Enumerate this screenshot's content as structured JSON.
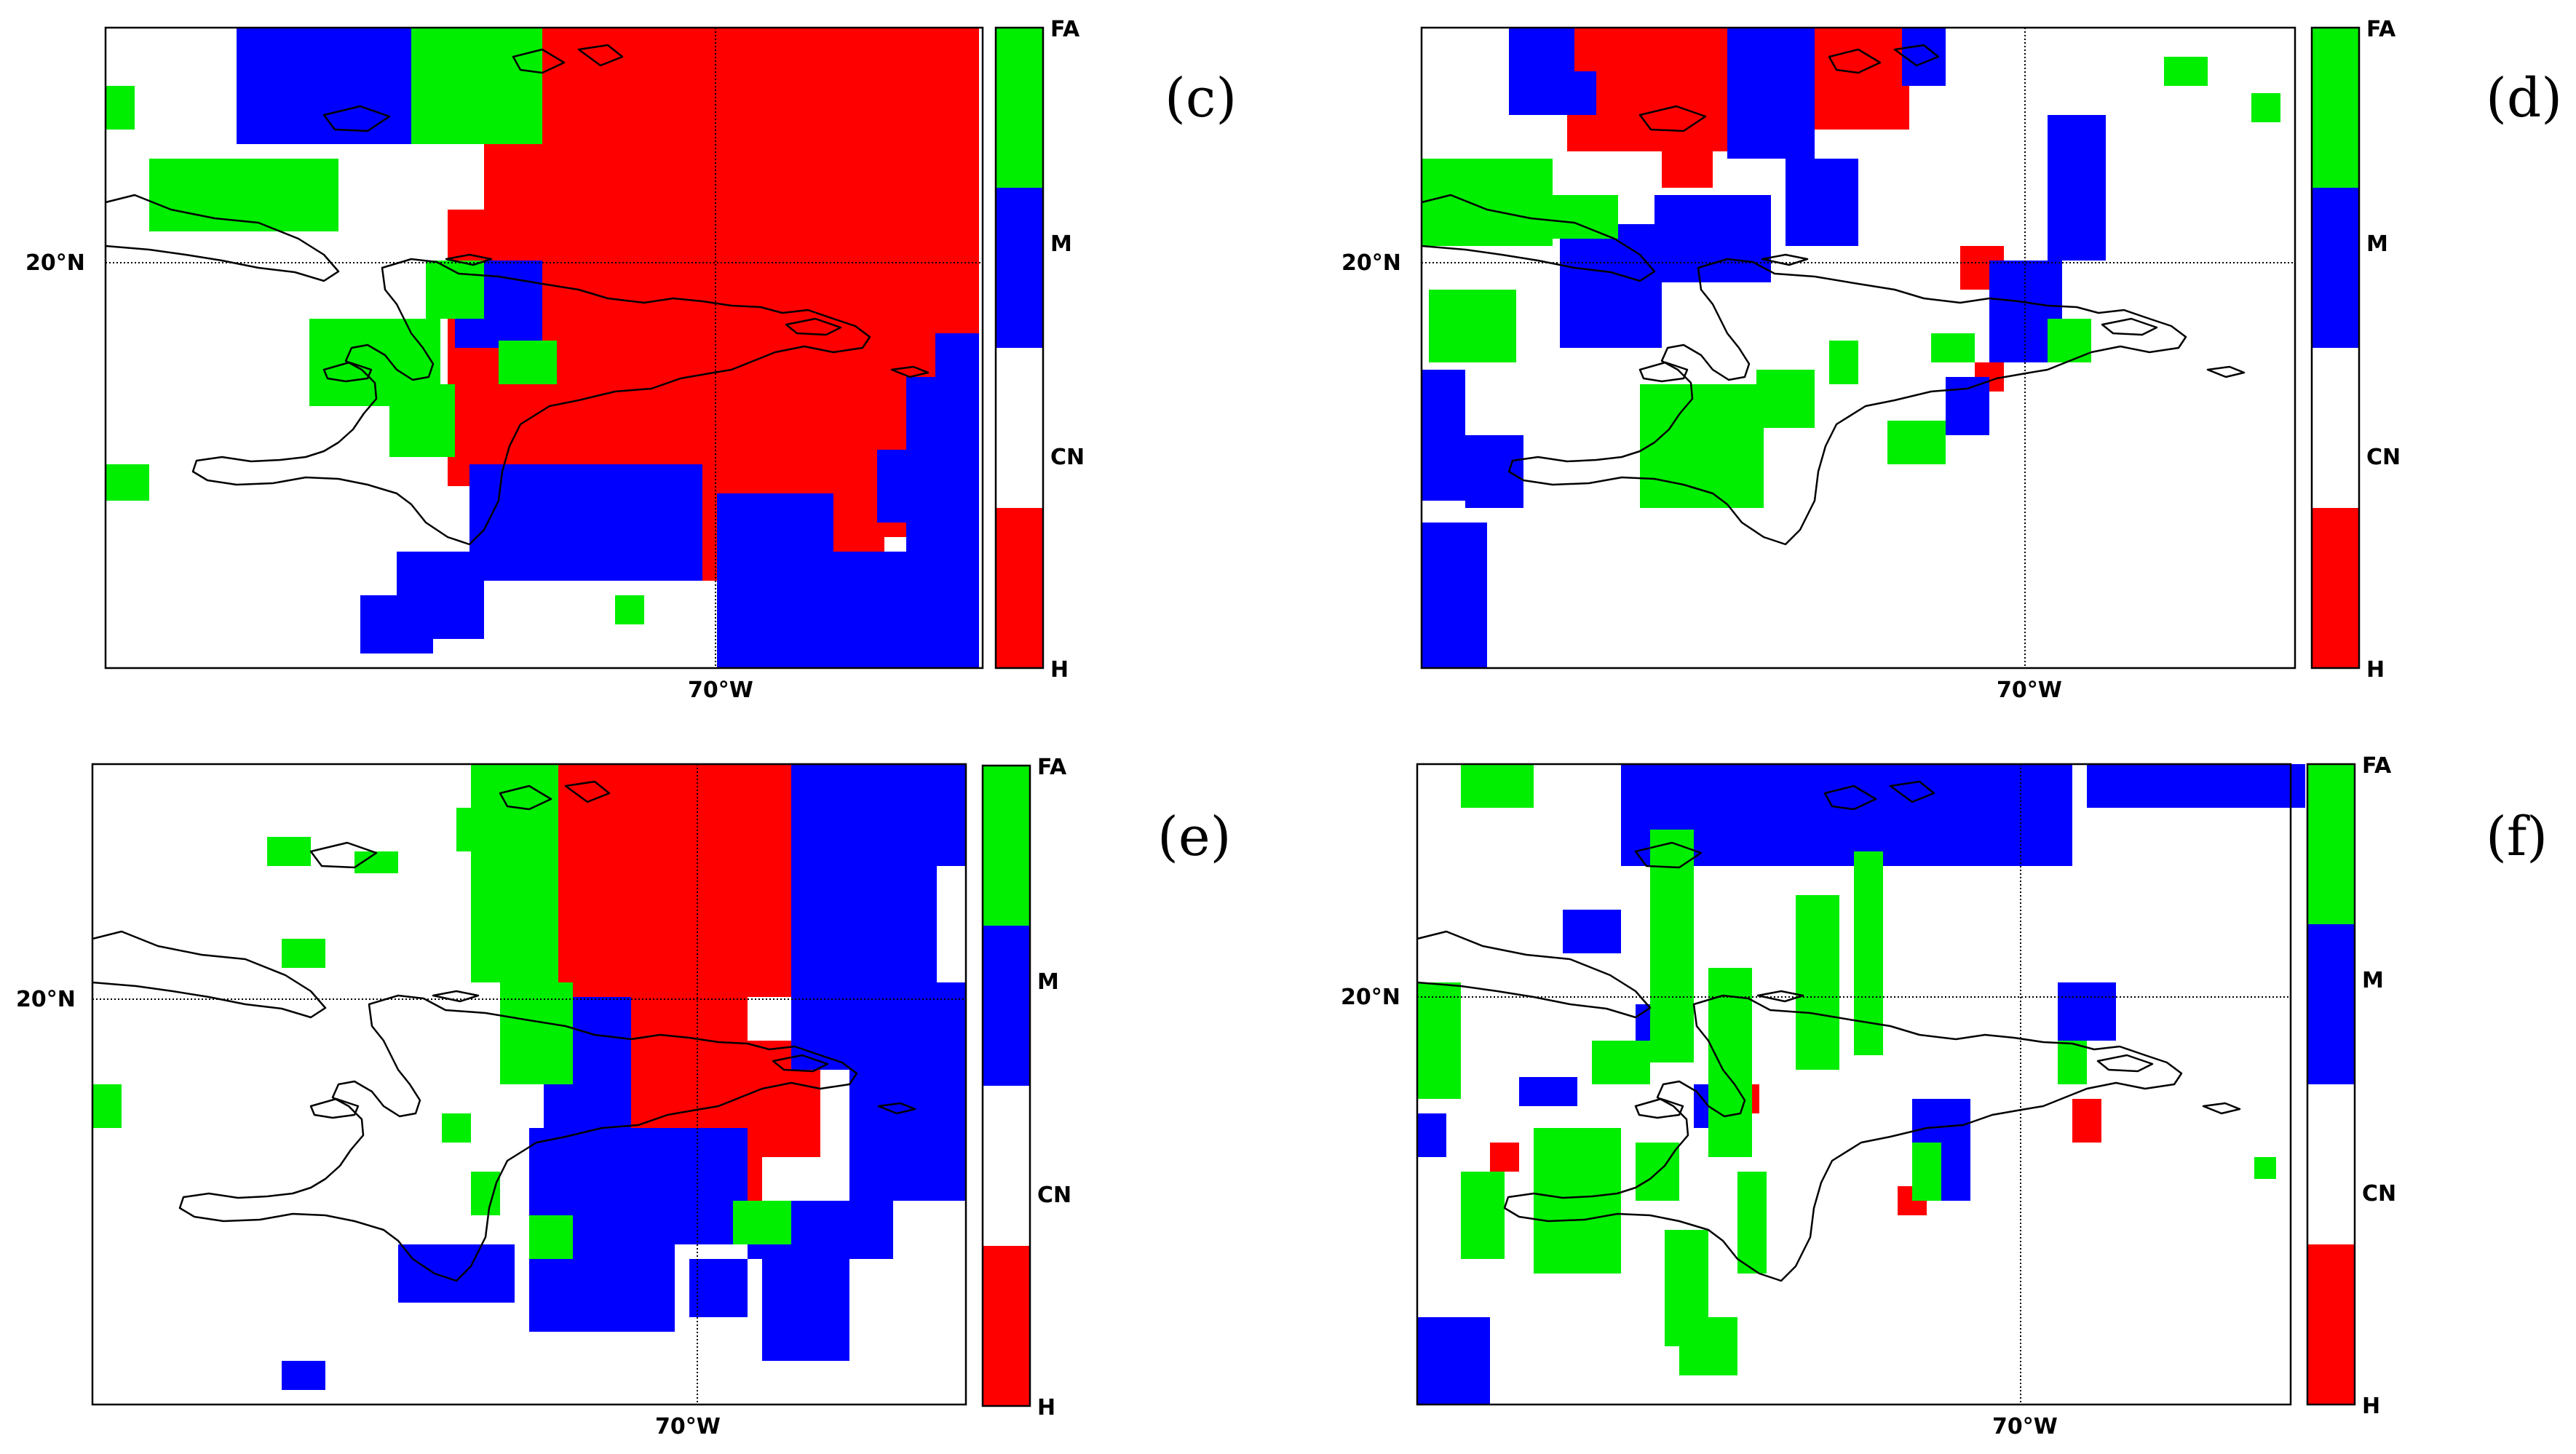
{
  "colors": {
    "H": "#ff0000",
    "CN": "#ffffff",
    "M": "#0000ff",
    "FA": "#00ee00"
  },
  "colorbar_labels": [
    "FA",
    "M",
    "CN",
    "H"
  ],
  "map_data": {
    "type": "categorical-map",
    "latitude_gridline": "20°N",
    "longitude_gridline": "70°W",
    "categories": [
      "H",
      "CN",
      "M",
      "FA"
    ],
    "panels": [
      {
        "id": "c",
        "label": "(c)",
        "lat_label": "20°N",
        "lon_label": "70°W",
        "dominant": [
          "H",
          "M",
          "FA"
        ]
      },
      {
        "id": "d",
        "label": "(d)",
        "lat_label": "20°N",
        "lon_label": "70°W",
        "dominant": [
          "M",
          "FA",
          "H"
        ]
      },
      {
        "id": "e",
        "label": "(e)",
        "lat_label": "20°N",
        "lon_label": "70°W",
        "dominant": [
          "H",
          "M",
          "FA"
        ]
      },
      {
        "id": "f",
        "label": "(f)",
        "lat_label": "20°N",
        "lon_label": "70°W",
        "dominant": [
          "FA",
          "M",
          "H"
        ]
      }
    ]
  }
}
